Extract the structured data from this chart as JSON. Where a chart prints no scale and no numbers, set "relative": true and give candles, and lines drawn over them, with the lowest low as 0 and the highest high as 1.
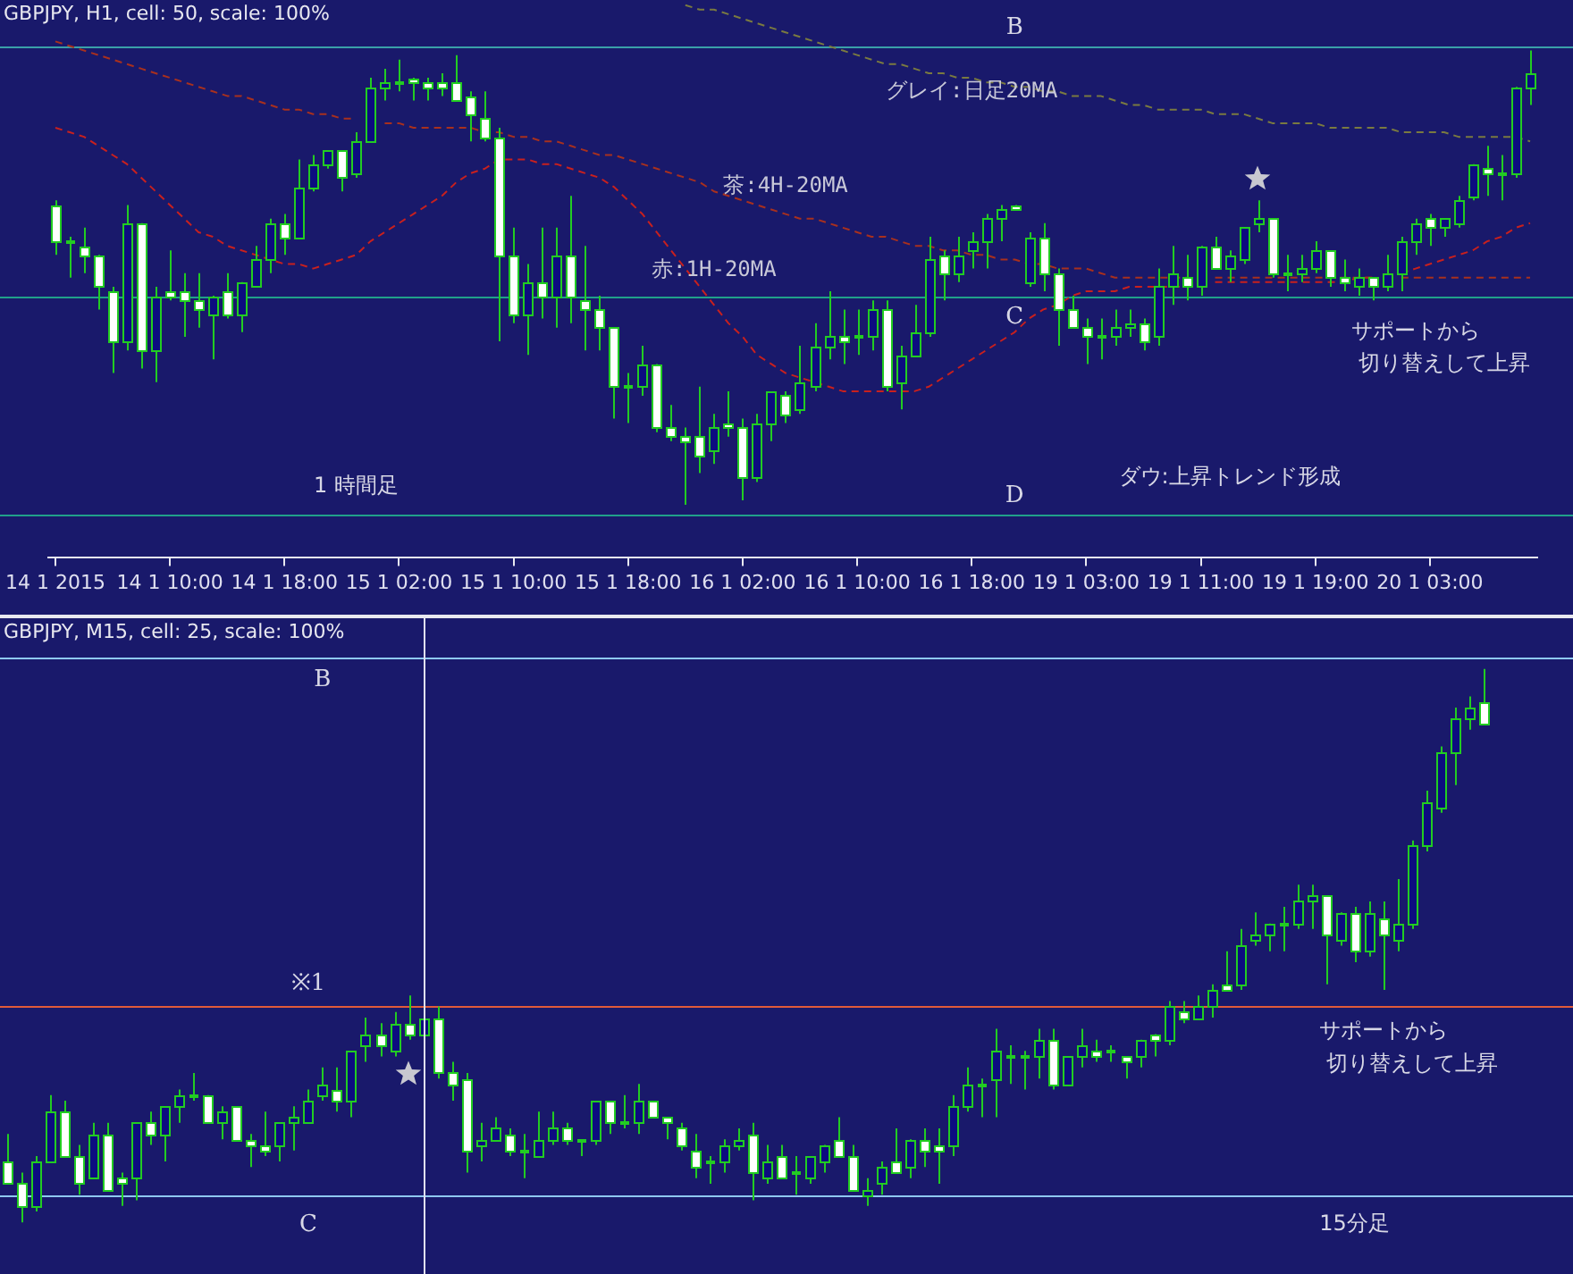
{
  "chart_data": [
    {
      "type": "candlestick",
      "title": "GBPJPY, H1, cell: 50, scale: 100%",
      "relative": true,
      "categories": [
        "14 1 2015",
        null,
        null,
        null,
        null,
        null,
        null,
        null,
        "14 1 10:00",
        null,
        null,
        null,
        null,
        null,
        null,
        null,
        "14 1 18:00",
        null,
        null,
        null,
        null,
        null,
        null,
        null,
        "15 1 02:00",
        null,
        null,
        null,
        null,
        null,
        null,
        null,
        "15 1 10:00",
        null,
        null,
        null,
        null,
        null,
        null,
        null,
        "15 1 18:00",
        null,
        null,
        null,
        null,
        null,
        null,
        null,
        "16 1 02:00",
        null,
        null,
        null,
        null,
        null,
        null,
        null,
        "16 1 10:00",
        null,
        null,
        null,
        null,
        null,
        null,
        null,
        "16 1 18:00",
        null,
        null,
        null,
        null,
        null,
        null,
        null,
        "19 1 03:00",
        null,
        null,
        null,
        null,
        null,
        null,
        null,
        "19 1 11:00",
        null,
        null,
        null,
        null,
        null,
        null,
        null,
        "19 1 19:00",
        null,
        null,
        null,
        null,
        null,
        null,
        null,
        "20 1 03:00",
        null,
        null,
        null,
        null,
        null,
        null,
        null
      ],
      "ohlc": [
        [
          0.66,
          0.67,
          0.55,
          0.58
        ],
        [
          0.58,
          0.59,
          0.5,
          0.58
        ],
        [
          0.57,
          0.61,
          0.51,
          0.55
        ],
        [
          0.55,
          0.55,
          0.43,
          0.48
        ],
        [
          0.47,
          0.48,
          0.29,
          0.36
        ],
        [
          0.36,
          0.66,
          0.34,
          0.62
        ],
        [
          0.62,
          0.62,
          0.3,
          0.34
        ],
        [
          0.34,
          0.48,
          0.27,
          0.46
        ],
        [
          0.47,
          0.56,
          0.45,
          0.46
        ],
        [
          0.47,
          0.51,
          0.37,
          0.45
        ],
        [
          0.45,
          0.51,
          0.39,
          0.43
        ],
        [
          0.42,
          0.46,
          0.32,
          0.46
        ],
        [
          0.47,
          0.51,
          0.41,
          0.42
        ],
        [
          0.42,
          0.49,
          0.38,
          0.49
        ],
        [
          0.48,
          0.57,
          0.48,
          0.54
        ],
        [
          0.54,
          0.63,
          0.51,
          0.62
        ],
        [
          0.62,
          0.64,
          0.55,
          0.59
        ],
        [
          0.59,
          0.76,
          0.59,
          0.7
        ],
        [
          0.7,
          0.77,
          0.69,
          0.75
        ],
        [
          0.75,
          0.78,
          0.74,
          0.78
        ],
        [
          0.78,
          0.78,
          0.69,
          0.72
        ],
        [
          0.73,
          0.82,
          0.72,
          0.8
        ],
        [
          0.8,
          0.94,
          0.8,
          0.92
        ],
        [
          0.92,
          0.96,
          0.89,
          0.93
        ],
        [
          0.93,
          0.98,
          0.91,
          0.93
        ],
        [
          0.94,
          0.94,
          0.89,
          0.93
        ],
        [
          0.93,
          0.94,
          0.89,
          0.92
        ],
        [
          0.93,
          0.95,
          0.9,
          0.92
        ],
        [
          0.93,
          0.99,
          0.89,
          0.89
        ],
        [
          0.9,
          0.91,
          0.8,
          0.86
        ],
        [
          0.85,
          0.91,
          0.8,
          0.81
        ],
        [
          0.81,
          0.83,
          0.36,
          0.55
        ],
        [
          0.55,
          0.61,
          0.4,
          0.42
        ],
        [
          0.42,
          0.53,
          0.33,
          0.49
        ],
        [
          0.49,
          0.61,
          0.41,
          0.46
        ],
        [
          0.46,
          0.61,
          0.39,
          0.55
        ],
        [
          0.55,
          0.68,
          0.4,
          0.46
        ],
        [
          0.45,
          0.57,
          0.34,
          0.43
        ],
        [
          0.43,
          0.46,
          0.34,
          0.39
        ],
        [
          0.39,
          0.39,
          0.19,
          0.26
        ],
        [
          0.26,
          0.29,
          0.18,
          0.26
        ],
        [
          0.26,
          0.35,
          0.24,
          0.31
        ],
        [
          0.31,
          0.31,
          0.16,
          0.17
        ],
        [
          0.17,
          0.22,
          0.14,
          0.15
        ],
        [
          0.15,
          0.17,
          0,
          0.14
        ],
        [
          0.15,
          0.26,
          0.07,
          0.11
        ],
        [
          0.12,
          0.2,
          0.09,
          0.17
        ],
        [
          0.18,
          0.25,
          0.15,
          0.17
        ],
        [
          0.17,
          0.19,
          0.01,
          0.06
        ],
        [
          0.06,
          0.2,
          0.05,
          0.18
        ],
        [
          0.18,
          0.25,
          0.14,
          0.25
        ],
        [
          0.24,
          0.25,
          0.18,
          0.2
        ],
        [
          0.21,
          0.35,
          0.2,
          0.27
        ],
        [
          0.26,
          0.4,
          0.25,
          0.35
        ],
        [
          0.35,
          0.47,
          0.32,
          0.37
        ],
        [
          0.37,
          0.43,
          0.31,
          0.36
        ],
        [
          0.37,
          0.43,
          0.33,
          0.37
        ],
        [
          0.37,
          0.45,
          0.34,
          0.43
        ],
        [
          0.43,
          0.45,
          0.25,
          0.26
        ],
        [
          0.27,
          0.35,
          0.21,
          0.33
        ],
        [
          0.33,
          0.44,
          0.33,
          0.38
        ],
        [
          0.38,
          0.59,
          0.37,
          0.54
        ],
        [
          0.55,
          0.56,
          0.45,
          0.51
        ],
        [
          0.51,
          0.59,
          0.49,
          0.55
        ],
        [
          0.56,
          0.6,
          0.52,
          0.58
        ],
        [
          0.58,
          0.64,
          0.52,
          0.63
        ],
        [
          0.63,
          0.66,
          0.58,
          0.65
        ],
        [
          0.66,
          0.66,
          0.65,
          0.65
        ],
        [
          0.49,
          0.6,
          0.48,
          0.59
        ],
        [
          0.59,
          0.62,
          0.47,
          0.51
        ],
        [
          0.51,
          0.52,
          0.35,
          0.43
        ],
        [
          0.43,
          0.46,
          0.39,
          0.39
        ],
        [
          0.39,
          0.41,
          0.31,
          0.37
        ],
        [
          0.37,
          0.41,
          0.32,
          0.37
        ],
        [
          0.37,
          0.43,
          0.35,
          0.39
        ],
        [
          0.39,
          0.43,
          0.37,
          0.4
        ],
        [
          0.4,
          0.41,
          0.34,
          0.36
        ],
        [
          0.37,
          0.52,
          0.35,
          0.48
        ],
        [
          0.48,
          0.57,
          0.44,
          0.51
        ],
        [
          0.5,
          0.55,
          0.45,
          0.48
        ],
        [
          0.48,
          0.57,
          0.46,
          0.57
        ],
        [
          0.57,
          0.59,
          0.52,
          0.52
        ],
        [
          0.52,
          0.56,
          0.49,
          0.55
        ],
        [
          0.54,
          0.61,
          0.53,
          0.61
        ],
        [
          0.62,
          0.67,
          0.6,
          0.63
        ],
        [
          0.63,
          0.63,
          0.5,
          0.51
        ],
        [
          0.51,
          0.55,
          0.47,
          0.51
        ],
        [
          0.51,
          0.55,
          0.49,
          0.52
        ],
        [
          0.52,
          0.58,
          0.51,
          0.56
        ],
        [
          0.56,
          0.56,
          0.48,
          0.5
        ],
        [
          0.5,
          0.54,
          0.47,
          0.49
        ],
        [
          0.48,
          0.52,
          0.46,
          0.5
        ],
        [
          0.5,
          0.5,
          0.45,
          0.48
        ],
        [
          0.48,
          0.55,
          0.47,
          0.51
        ],
        [
          0.51,
          0.59,
          0.47,
          0.58
        ],
        [
          0.58,
          0.63,
          0.55,
          0.62
        ],
        [
          0.63,
          0.64,
          0.57,
          0.61
        ],
        [
          0.61,
          0.63,
          0.59,
          0.63
        ],
        [
          0.62,
          0.68,
          0.61,
          0.67
        ],
        [
          0.68,
          0.75,
          0.67,
          0.75
        ],
        [
          0.74,
          0.79,
          0.68,
          0.73
        ],
        [
          0.73,
          0.77,
          0.67,
          0.73
        ],
        [
          0.73,
          0.92,
          0.72,
          0.92
        ],
        [
          0.92,
          1,
          0.88,
          0.95
        ]
      ],
      "series": [
        {
          "name": "グレイ:日足20MA",
          "type": "line",
          "color": "#7a7a40",
          "line_style": "dashed",
          "values": [
            null,
            null,
            null,
            null,
            null,
            null,
            null,
            null,
            null,
            null,
            null,
            null,
            null,
            null,
            null,
            null,
            null,
            null,
            null,
            null,
            null,
            null,
            null,
            null,
            null,
            null,
            null,
            null,
            null,
            null,
            null,
            null,
            null,
            null,
            null,
            null,
            null,
            null,
            null,
            null,
            null,
            null,
            null,
            null,
            1.1,
            1.09,
            1.09,
            1.08,
            1.07,
            1.06,
            1.05,
            1.04,
            1.03,
            1.02,
            1.01,
            1.0,
            0.99,
            0.98,
            0.97,
            0.97,
            0.96,
            0.95,
            0.95,
            0.94,
            0.94,
            0.93,
            0.93,
            0.92,
            0.92,
            0.91,
            0.91,
            0.9,
            0.9,
            0.9,
            0.89,
            0.88,
            0.88,
            0.87,
            0.87,
            0.87,
            0.87,
            0.86,
            0.86,
            0.86,
            0.85,
            0.84,
            0.84,
            0.84,
            0.84,
            0.83,
            0.83,
            0.83,
            0.83,
            0.83,
            0.82,
            0.82,
            0.82,
            0.82,
            0.81,
            0.81,
            0.81,
            0.81,
            0.81,
            0.8
          ]
        },
        {
          "name": "茶:4H-20MA",
          "type": "line",
          "color": "#a8301e",
          "line_style": "dashed",
          "values": [
            1.02,
            1.01,
            1.0,
            0.99,
            0.98,
            0.97,
            0.96,
            0.95,
            0.94,
            0.93,
            0.92,
            0.91,
            0.9,
            0.9,
            0.89,
            0.88,
            0.87,
            0.87,
            0.86,
            0.86,
            0.85,
            0.85,
            null,
            0.84,
            0.84,
            0.83,
            0.83,
            0.83,
            0.83,
            0.83,
            0.82,
            0.82,
            0.81,
            0.81,
            0.8,
            0.8,
            0.79,
            0.78,
            0.77,
            0.77,
            0.76,
            0.75,
            0.74,
            0.73,
            0.72,
            0.71,
            0.69,
            0.68,
            0.67,
            0.66,
            0.65,
            0.64,
            0.63,
            0.63,
            0.62,
            0.61,
            0.6,
            0.59,
            0.59,
            0.58,
            0.57,
            0.57,
            0.56,
            0.56,
            0.55,
            0.55,
            0.54,
            0.54,
            0.53,
            0.53,
            0.52,
            0.52,
            0.52,
            0.51,
            0.5,
            0.5,
            0.5,
            0.5,
            0.5,
            0.5,
            null,
            0.5,
            0.5,
            0.5,
            0.5,
            0.5,
            0.5,
            0.5,
            0.5,
            0.5,
            0.5,
            0.5,
            0.5,
            null,
            0.5,
            0.5,
            0.5,
            0.5,
            0.5,
            0.5,
            0.5,
            0.5,
            0.5,
            0.5
          ]
        },
        {
          "name": "赤:1H-20MA",
          "type": "line",
          "color": "#c8201e",
          "line_style": "dashed",
          "values": [
            0.83,
            0.82,
            0.81,
            0.79,
            0.77,
            0.75,
            0.72,
            0.69,
            0.66,
            0.63,
            0.6,
            0.59,
            0.57,
            0.56,
            0.55,
            0.54,
            0.53,
            0.53,
            0.52,
            0.53,
            0.54,
            0.55,
            0.58,
            0.6,
            0.62,
            0.64,
            0.66,
            0.68,
            0.71,
            0.73,
            0.74,
            0.76,
            0.76,
            0.76,
            0.75,
            0.75,
            0.74,
            0.73,
            0.72,
            0.7,
            0.67,
            0.64,
            0.6,
            0.56,
            0.52,
            0.48,
            0.44,
            0.4,
            0.37,
            0.33,
            0.31,
            0.29,
            0.28,
            0.27,
            0.26,
            0.25,
            0.25,
            0.25,
            0.25,
            0.25,
            0.25,
            0.26,
            0.28,
            0.3,
            0.32,
            0.34,
            0.36,
            0.38,
            0.41,
            0.43,
            0.44,
            0.46,
            0.47,
            0.47,
            0.47,
            0.48,
            0.48,
            0.48,
            0.48,
            0.48,
            null,
            0.49,
            0.49,
            0.49,
            0.49,
            0.49,
            0.49,
            0.49,
            0.49,
            0.49,
            0.49,
            0.5,
            0.5,
            null,
            0.51,
            0.52,
            0.53,
            0.54,
            0.55,
            0.56,
            0.58,
            0.59,
            0.61,
            0.62
          ]
        }
      ],
      "ref_lines": [
        {
          "axis": "y",
          "value": 1.01,
          "label": "B",
          "color": "#3aa0a8"
        },
        {
          "axis": "y",
          "value": 0.46,
          "label": "C",
          "color": "#20a08a"
        },
        {
          "axis": "y",
          "value": -0.02,
          "label": "D",
          "color": "#20a08a"
        }
      ],
      "annotations": [
        "1 時間足",
        "サポートから",
        "切り替えして上昇",
        "ダウ:上昇トレンド形成"
      ]
    },
    {
      "type": "candlestick",
      "title": "GBPJPY, M15, cell: 25, scale: 100%",
      "relative": true,
      "tick_labels": false,
      "categories": [
        null,
        null,
        null,
        null,
        null,
        null,
        null,
        null,
        null,
        null,
        null,
        null,
        null,
        null,
        null,
        null,
        null,
        null,
        null,
        null,
        null,
        null,
        null,
        null,
        null,
        null,
        null,
        null,
        null,
        null,
        null,
        null,
        null,
        null,
        null,
        null,
        null,
        null,
        null,
        null,
        null,
        null,
        null,
        null,
        null,
        null,
        null,
        null,
        null,
        null,
        null,
        null,
        null,
        null,
        null,
        null,
        null,
        null,
        null,
        null,
        null,
        null,
        null,
        null,
        null,
        null,
        null,
        null,
        null,
        null,
        null,
        null,
        null,
        null,
        null,
        null,
        null,
        null,
        null,
        null,
        null,
        null,
        null,
        null,
        null,
        null,
        null,
        null,
        null,
        null,
        null,
        null,
        null,
        null,
        null,
        null,
        null,
        null,
        null,
        null,
        null,
        null,
        null,
        null
      ],
      "ohlc": [
        [
          0.11,
          0.16,
          0.07,
          0.07
        ],
        [
          0.07,
          0.09,
          0,
          0.03
        ],
        [
          0.03,
          0.12,
          0.02,
          0.11
        ],
        [
          0.11,
          0.23,
          0.11,
          0.2
        ],
        [
          0.2,
          0.22,
          0.12,
          0.12
        ],
        [
          0.12,
          0.14,
          0.05,
          0.07
        ],
        [
          0.08,
          0.18,
          0.08,
          0.16
        ],
        [
          0.16,
          0.18,
          0.06,
          0.06
        ],
        [
          0.08,
          0.09,
          0.03,
          0.07
        ],
        [
          0.08,
          0.18,
          0.04,
          0.18
        ],
        [
          0.18,
          0.2,
          0.14,
          0.16
        ],
        [
          0.16,
          0.21,
          0.11,
          0.21
        ],
        [
          0.21,
          0.24,
          0.18,
          0.23
        ],
        [
          0.23,
          0.27,
          0.22,
          0.23
        ],
        [
          0.23,
          0.23,
          0.18,
          0.18
        ],
        [
          0.18,
          0.21,
          0.15,
          0.2
        ],
        [
          0.21,
          0.21,
          0.15,
          0.15
        ],
        [
          0.15,
          0.16,
          0.1,
          0.14
        ],
        [
          0.14,
          0.2,
          0.12,
          0.13
        ],
        [
          0.14,
          0.18,
          0.11,
          0.18
        ],
        [
          0.18,
          0.21,
          0.13,
          0.19
        ],
        [
          0.18,
          0.24,
          0.18,
          0.22
        ],
        [
          0.23,
          0.28,
          0.22,
          0.25
        ],
        [
          0.24,
          0.28,
          0.2,
          0.22
        ],
        [
          0.22,
          0.31,
          0.19,
          0.31
        ],
        [
          0.32,
          0.37,
          0.29,
          0.34
        ],
        [
          0.34,
          0.36,
          0.3,
          0.32
        ],
        [
          0.31,
          0.38,
          0.3,
          0.36
        ],
        [
          0.36,
          0.41,
          0.33,
          0.34
        ],
        [
          0.34,
          0.37,
          0.34,
          0.37
        ],
        [
          0.37,
          0.39,
          0.26,
          0.27
        ],
        [
          0.27,
          0.29,
          0.22,
          0.25
        ],
        [
          0.26,
          0.27,
          0.09,
          0.13
        ],
        [
          0.14,
          0.18,
          0.11,
          0.15
        ],
        [
          0.15,
          0.19,
          0.15,
          0.17
        ],
        [
          0.16,
          0.17,
          0.12,
          0.13
        ],
        [
          0.13,
          0.16,
          0.08,
          0.13
        ],
        [
          0.12,
          0.2,
          0.12,
          0.15
        ],
        [
          0.15,
          0.2,
          0.14,
          0.17
        ],
        [
          0.17,
          0.18,
          0.14,
          0.15
        ],
        [
          0.15,
          0.15,
          0.12,
          0.15
        ],
        [
          0.15,
          0.22,
          0.14,
          0.22
        ],
        [
          0.22,
          0.22,
          0.16,
          0.18
        ],
        [
          0.18,
          0.23,
          0.17,
          0.18
        ],
        [
          0.18,
          0.25,
          0.16,
          0.22
        ],
        [
          0.22,
          0.22,
          0.19,
          0.19
        ],
        [
          0.19,
          0.19,
          0.15,
          0.18
        ],
        [
          0.17,
          0.18,
          0.13,
          0.14
        ],
        [
          0.13,
          0.16,
          0.08,
          0.1
        ],
        [
          0.11,
          0.12,
          0.07,
          0.11
        ],
        [
          0.11,
          0.15,
          0.09,
          0.14
        ],
        [
          0.14,
          0.17,
          0.13,
          0.15
        ],
        [
          0.16,
          0.18,
          0.04,
          0.09
        ],
        [
          0.08,
          0.14,
          0.07,
          0.11
        ],
        [
          0.12,
          0.14,
          0.08,
          0.08
        ],
        [
          0.09,
          0.12,
          0.05,
          0.09
        ],
        [
          0.08,
          0.12,
          0.07,
          0.12
        ],
        [
          0.11,
          0.14,
          0.09,
          0.14
        ],
        [
          0.15,
          0.19,
          0.12,
          0.12
        ],
        [
          0.12,
          0.14,
          0.06,
          0.06
        ],
        [
          0.05,
          0.08,
          0.03,
          0.06
        ],
        [
          0.07,
          0.11,
          0.05,
          0.1
        ],
        [
          0.11,
          0.17,
          0.09,
          0.09
        ],
        [
          0.1,
          0.15,
          0.08,
          0.15
        ],
        [
          0.15,
          0.17,
          0.1,
          0.13
        ],
        [
          0.14,
          0.17,
          0.07,
          0.13
        ],
        [
          0.14,
          0.23,
          0.12,
          0.21
        ],
        [
          0.21,
          0.28,
          0.2,
          0.25
        ],
        [
          0.25,
          0.26,
          0.19,
          0.25
        ],
        [
          0.26,
          0.35,
          0.19,
          0.31
        ],
        [
          0.3,
          0.32,
          0.25,
          0.3
        ],
        [
          0.3,
          0.31,
          0.24,
          0.3
        ],
        [
          0.3,
          0.35,
          0.26,
          0.33
        ],
        [
          0.33,
          0.35,
          0.24,
          0.25
        ],
        [
          0.25,
          0.3,
          0.25,
          0.3
        ],
        [
          0.3,
          0.35,
          0.28,
          0.32
        ],
        [
          0.31,
          0.33,
          0.29,
          0.3
        ],
        [
          0.31,
          0.32,
          0.29,
          0.31
        ],
        [
          0.3,
          0.3,
          0.26,
          0.29
        ],
        [
          0.3,
          0.33,
          0.28,
          0.33
        ],
        [
          0.34,
          0.34,
          0.3,
          0.33
        ],
        [
          0.33,
          0.4,
          0.32,
          0.39
        ],
        [
          0.38,
          0.4,
          0.36,
          0.37
        ],
        [
          0.37,
          0.41,
          0.37,
          0.39
        ],
        [
          0.39,
          0.43,
          0.37,
          0.42
        ],
        [
          0.43,
          0.49,
          0.42,
          0.42
        ],
        [
          0.43,
          0.53,
          0.42,
          0.5
        ],
        [
          0.51,
          0.56,
          0.5,
          0.52
        ],
        [
          0.52,
          0.54,
          0.49,
          0.54
        ],
        [
          0.54,
          0.57,
          0.49,
          0.54
        ],
        [
          0.54,
          0.61,
          0.53,
          0.58
        ],
        [
          0.58,
          0.61,
          0.53,
          0.59
        ],
        [
          0.59,
          0.59,
          0.43,
          0.52
        ],
        [
          0.51,
          0.56,
          0.5,
          0.56
        ],
        [
          0.56,
          0.57,
          0.47,
          0.49
        ],
        [
          0.49,
          0.58,
          0.48,
          0.56
        ],
        [
          0.55,
          0.58,
          0.42,
          0.52
        ],
        [
          0.51,
          0.62,
          0.49,
          0.54
        ],
        [
          0.54,
          0.69,
          0.53,
          0.68
        ],
        [
          0.68,
          0.78,
          0.67,
          0.76
        ],
        [
          0.75,
          0.86,
          0.74,
          0.85
        ],
        [
          0.85,
          0.93,
          0.79,
          0.91
        ],
        [
          0.91,
          0.95,
          0.89,
          0.93
        ],
        [
          0.94,
          1,
          0.9,
          0.9
        ]
      ],
      "ref_lines": [
        {
          "axis": "y",
          "value": 1.02,
          "label": "B",
          "color": "#8ec8f0"
        },
        {
          "axis": "y",
          "value": 0.39,
          "label": "※1",
          "color": "#e05a3a"
        },
        {
          "axis": "y",
          "value": 0.05,
          "label": "C",
          "color": "#8ec8f0"
        }
      ],
      "annotations": [
        "サポートから",
        "切り替えして上昇",
        "15分足"
      ]
    }
  ]
}
